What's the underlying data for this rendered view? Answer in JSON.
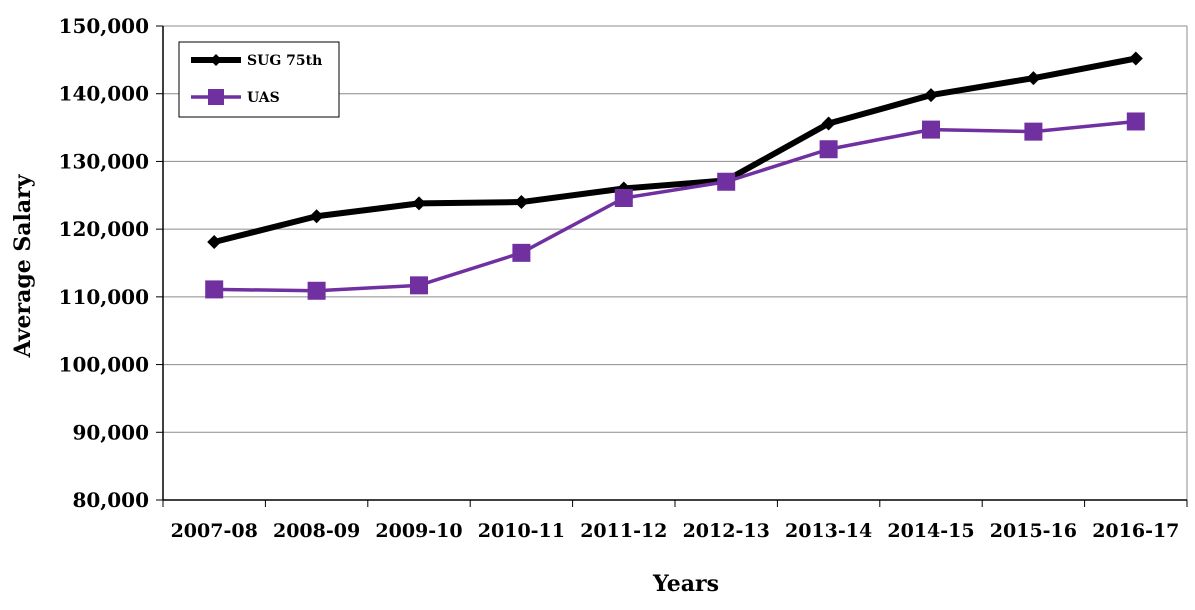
{
  "chart_data": {
    "type": "line",
    "title": "",
    "xlabel": "Years",
    "ylabel": "Average Salary",
    "categories": [
      "2007-08",
      "2008-09",
      "2009-10",
      "2010-11",
      "2011-12",
      "2012-13",
      "2013-14",
      "2014-15",
      "2015-16",
      "2016-17"
    ],
    "ylim": [
      80000,
      150000
    ],
    "yticks": [
      80000,
      90000,
      100000,
      110000,
      120000,
      130000,
      140000,
      150000
    ],
    "ytick_labels": [
      "80,000",
      "90,000",
      "100,000",
      "110,000",
      "120,000",
      "130,000",
      "140,000",
      "150,000"
    ],
    "grid": "horizontal",
    "legend_position": "top-left",
    "series": [
      {
        "name": "SUG 75th",
        "color": "#000000",
        "marker": "diamond",
        "values": [
          118100,
          121900,
          123800,
          124000,
          126000,
          127200,
          135600,
          139800,
          142300,
          145200
        ]
      },
      {
        "name": "UAS",
        "color": "#7030A0",
        "marker": "square",
        "values": [
          111100,
          110900,
          111700,
          116500,
          124600,
          127000,
          131800,
          134700,
          134400,
          135900
        ]
      }
    ]
  }
}
